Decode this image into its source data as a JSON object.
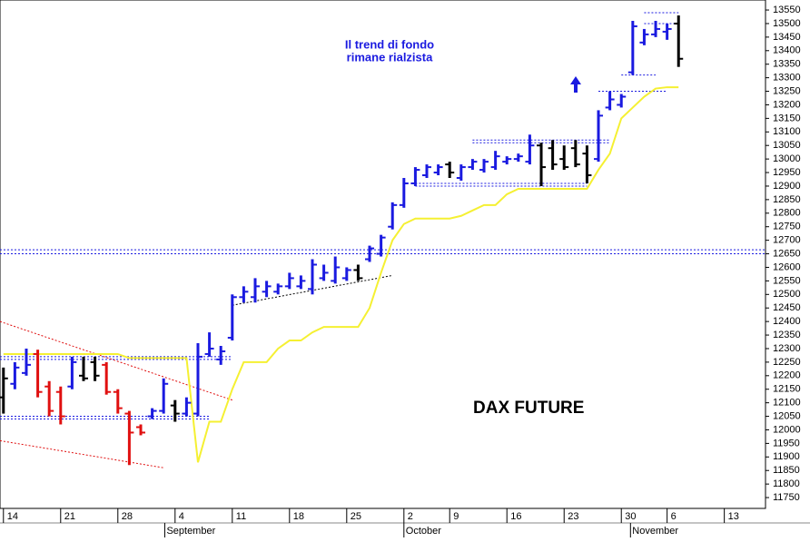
{
  "chart_data": {
    "type": "ohlc",
    "annotations": [
      "Il trend di fondo",
      "rimane rialzista",
      "DAX FUTURE"
    ],
    "x": [
      0,
      1,
      2,
      3,
      4,
      5,
      6,
      7,
      8,
      9,
      10,
      11,
      12,
      13,
      14,
      15,
      16,
      17,
      18,
      19,
      20,
      21,
      22,
      23,
      24,
      25,
      26,
      27,
      28,
      29,
      30,
      31,
      32,
      33,
      34,
      35,
      36,
      37,
      38,
      39,
      40,
      41,
      42,
      43,
      44,
      45,
      46,
      47,
      48,
      49,
      50,
      51,
      52,
      53,
      54,
      55,
      56,
      57,
      58,
      59
    ],
    "open": [
      12120,
      12170,
      12210,
      12280,
      12160,
      12140,
      12160,
      12200,
      12250,
      12240,
      12140,
      12060,
      12010,
      12050,
      12070,
      12090,
      12060,
      12060,
      12280,
      12260,
      12340,
      12490,
      12490,
      12510,
      12510,
      12530,
      12530,
      12520,
      12560,
      12550,
      12560,
      12590,
      12630,
      12650,
      12750,
      12830,
      12910,
      12940,
      12950,
      12980,
      12930,
      12970,
      12960,
      12970,
      12990,
      13000,
      12990,
      13050,
      13040,
      13000,
      13040,
      13020,
      13000,
      13190,
      13200,
      13320,
      13430,
      13460,
      13470,
      13500
    ],
    "high": [
      12230,
      12250,
      12300,
      12296,
      12180,
      12160,
      12270,
      12270,
      12270,
      12250,
      12150,
      12070,
      12020,
      12080,
      12190,
      12110,
      12120,
      12320,
      12360,
      12310,
      12500,
      12530,
      12560,
      12550,
      12540,
      12580,
      12570,
      12630,
      12610,
      12640,
      12600,
      12610,
      12680,
      12720,
      12840,
      12930,
      12970,
      12980,
      12980,
      12990,
      12980,
      13000,
      13000,
      13030,
      13010,
      13020,
      13090,
      13060,
      13070,
      13050,
      13070,
      13050,
      13180,
      13250,
      13240,
      13510,
      13480,
      13510,
      13500,
      13530
    ],
    "low": [
      12060,
      12150,
      12200,
      12120,
      12050,
      12020,
      12150,
      12180,
      12180,
      12130,
      12060,
      11870,
      11980,
      12040,
      12060,
      12030,
      12050,
      12050,
      12270,
      12240,
      12330,
      12470,
      12470,
      12490,
      12500,
      12520,
      12520,
      12500,
      12550,
      12540,
      12550,
      12550,
      12620,
      12640,
      12740,
      12820,
      12900,
      12930,
      12940,
      12930,
      12920,
      12960,
      12950,
      12960,
      12980,
      12990,
      12980,
      12900,
      12960,
      12960,
      12970,
      12910,
      12990,
      13180,
      13190,
      13310,
      13420,
      13450,
      13440,
      13340
    ],
    "close": [
      12190,
      12230,
      12240,
      12140,
      12070,
      12050,
      12250,
      12190,
      12200,
      12140,
      12080,
      11990,
      11990,
      12070,
      12170,
      12060,
      12100,
      12270,
      12300,
      12290,
      12490,
      12510,
      12530,
      12530,
      12530,
      12560,
      12550,
      12610,
      12580,
      12600,
      12590,
      12560,
      12670,
      12710,
      12830,
      12910,
      12960,
      12970,
      12970,
      12950,
      12970,
      12990,
      12990,
      13010,
      13000,
      13010,
      13050,
      12970,
      12980,
      12970,
      12980,
      12940,
      13160,
      13220,
      13230,
      13490,
      13460,
      13480,
      13480,
      13370
    ],
    "colors": [
      "#000000",
      "#1a1ae0",
      "#1a1ae0",
      "#e01010",
      "#e01010",
      "#e01010",
      "#1a1ae0",
      "#000000",
      "#000000",
      "#e01010",
      "#e01010",
      "#e01010",
      "#e01010",
      "#1a1ae0",
      "#1a1ae0",
      "#000000",
      "#1a1ae0",
      "#1a1ae0",
      "#1a1ae0",
      "#1a1ae0",
      "#1a1ae0",
      "#1a1ae0",
      "#1a1ae0",
      "#1a1ae0",
      "#1a1ae0",
      "#1a1ae0",
      "#1a1ae0",
      "#1a1ae0",
      "#1a1ae0",
      "#1a1ae0",
      "#1a1ae0",
      "#000000",
      "#1a1ae0",
      "#1a1ae0",
      "#1a1ae0",
      "#1a1ae0",
      "#1a1ae0",
      "#1a1ae0",
      "#1a1ae0",
      "#000000",
      "#1a1ae0",
      "#1a1ae0",
      "#1a1ae0",
      "#1a1ae0",
      "#1a1ae0",
      "#1a1ae0",
      "#1a1ae0",
      "#000000",
      "#000000",
      "#000000",
      "#000000",
      "#000000",
      "#1a1ae0",
      "#1a1ae0",
      "#1a1ae0",
      "#1a1ae0",
      "#1a1ae0",
      "#1a1ae0",
      "#1a1ae0",
      "#000000"
    ],
    "line": {
      "color": "#f5f032",
      "values": [
        12280,
        12280,
        12280,
        12280,
        12280,
        12280,
        12280,
        12280,
        12280,
        12280,
        12280,
        12265,
        12265,
        12265,
        12265,
        12265,
        12265,
        11880,
        12030,
        12030,
        12150,
        12250,
        12250,
        12250,
        12300,
        12330,
        12330,
        12360,
        12380,
        12380,
        12380,
        12380,
        12450,
        12580,
        12700,
        12760,
        12780,
        12780,
        12780,
        12780,
        12790,
        12810,
        12830,
        12830,
        12870,
        12890,
        12890,
        12890,
        12890,
        12890,
        12890,
        12890,
        12960,
        13020,
        13150,
        13190,
        13230,
        13260,
        13265,
        13265
      ]
    },
    "levels": [
      {
        "y": 12665,
        "x": [
          -0.3,
          66.6
        ],
        "color": "#1a1ae0"
      },
      {
        "y": 12650,
        "x": [
          -0.3,
          66.6
        ],
        "color": "#1a1ae0"
      },
      {
        "y": 12270,
        "x": [
          -0.3,
          20
        ],
        "color": "#1a1ae0"
      },
      {
        "y": 12260,
        "x": [
          -0.3,
          20
        ],
        "color": "#1a1ae0"
      },
      {
        "y": 12050,
        "x": [
          -0.3,
          18
        ],
        "color": "#1a1ae0"
      },
      {
        "y": 12040,
        "x": [
          -0.3,
          18
        ],
        "color": "#1a1ae0"
      },
      {
        "y": 13070,
        "x": [
          41,
          53
        ],
        "color": "#1a1ae0"
      },
      {
        "y": 13060,
        "x": [
          41,
          53
        ],
        "color": "#1a1ae0"
      },
      {
        "y": 12910,
        "x": [
          36,
          51
        ],
        "color": "#1a1ae0"
      },
      {
        "y": 12900,
        "x": [
          36,
          51
        ],
        "color": "#1a1ae0"
      },
      {
        "y": 13250,
        "x": [
          52,
          58
        ],
        "color": "#1a1ae0"
      },
      {
        "y": 13310,
        "x": [
          54,
          57
        ],
        "color": "#1a1ae0"
      },
      {
        "y": 13540,
        "x": [
          56,
          59
        ],
        "color": "#1a1ae0"
      },
      {
        "y": 13500,
        "x": [
          56,
          59
        ],
        "color": "#1a1ae0"
      }
    ],
    "trendlines": [
      {
        "x": [
          -0.3,
          20
        ],
        "y": [
          12400,
          12110
        ],
        "color": "#e01010"
      },
      {
        "x": [
          -0.3,
          14
        ],
        "y": [
          11960,
          11860
        ],
        "color": "#e01010"
      },
      {
        "x": [
          20,
          34
        ],
        "y": [
          12460,
          12570
        ],
        "color": "#000000"
      }
    ],
    "xlim": [
      -0.3,
      66.6
    ],
    "ylim": [
      11710,
      13587
    ],
    "xticks": [
      {
        "value": 0,
        "label": "14"
      },
      {
        "value": 5,
        "label": "21"
      },
      {
        "value": 10,
        "label": "28"
      },
      {
        "value": 15,
        "label": "4"
      },
      {
        "value": 20,
        "label": "11"
      },
      {
        "value": 25,
        "label": "18"
      },
      {
        "value": 30,
        "label": "25"
      },
      {
        "value": 35,
        "label": "2"
      },
      {
        "value": 39,
        "label": "9"
      },
      {
        "value": 44,
        "label": "16"
      },
      {
        "value": 49,
        "label": "23"
      },
      {
        "value": 54,
        "label": "30"
      },
      {
        "value": 58,
        "label": "6"
      },
      {
        "value": 63,
        "label": "13"
      }
    ],
    "months": [
      {
        "value": 14.1,
        "label": "September"
      },
      {
        "value": 35,
        "label": "October"
      },
      {
        "value": 54.8,
        "label": "November"
      }
    ],
    "yticks": [
      11750,
      11800,
      11850,
      11900,
      11950,
      12000,
      12050,
      12100,
      12150,
      12200,
      12250,
      12300,
      12350,
      12400,
      12450,
      12500,
      12550,
      12600,
      12650,
      12700,
      12750,
      12800,
      12850,
      12900,
      12950,
      13000,
      13050,
      13100,
      13150,
      13200,
      13250,
      13300,
      13350,
      13400,
      13450,
      13500,
      13550
    ]
  }
}
